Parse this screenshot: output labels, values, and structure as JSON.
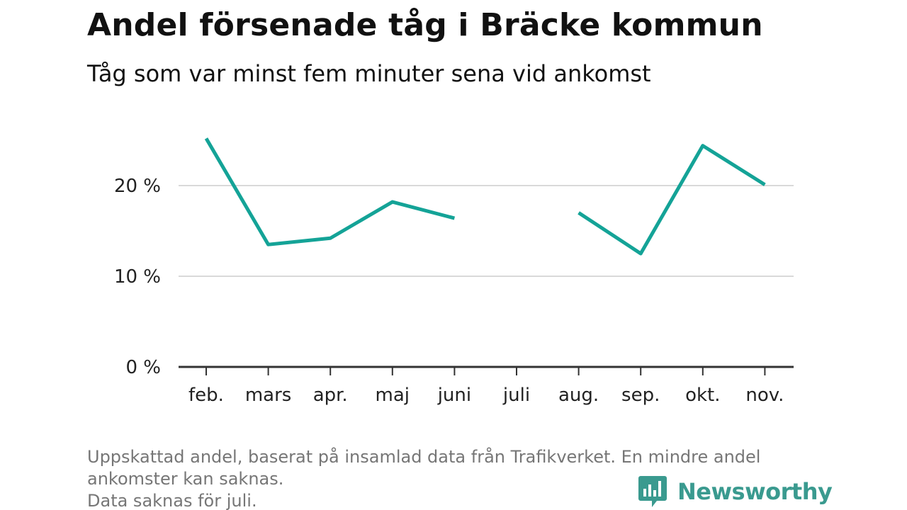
{
  "header": {
    "title": "Andel försenade tåg i Bräcke kommun",
    "subtitle": "Tåg som var minst fem minuter sena vid ankomst"
  },
  "chart_data": {
    "type": "line",
    "categories": [
      "feb.",
      "mars",
      "apr.",
      "maj",
      "juni",
      "juli",
      "aug.",
      "sep.",
      "okt.",
      "nov."
    ],
    "series": [
      {
        "values": [
          25.2,
          13.5,
          14.2,
          18.2,
          16.4,
          null,
          17.0,
          12.5,
          24.4,
          20.1
        ]
      }
    ],
    "y_ticks": [
      0,
      10,
      20
    ],
    "y_tick_labels": [
      "0 %",
      "10 %",
      "20 %"
    ],
    "ylim": [
      0,
      27
    ],
    "ylabel": "",
    "xlabel": "",
    "grid": true,
    "line_color": "#14a397",
    "grid_color": "#d9d9d9",
    "axis_color": "#333333"
  },
  "footnote": {
    "lines": [
      "Uppskattad andel, baserat på insamlad data från Trafikverket. En mindre andel",
      "ankomster kan saknas.",
      "Data saknas för juli."
    ]
  },
  "brand": {
    "name": "Newsworthy",
    "icon": "newsworthy-logo-icon",
    "color": "#3a9a8f"
  }
}
